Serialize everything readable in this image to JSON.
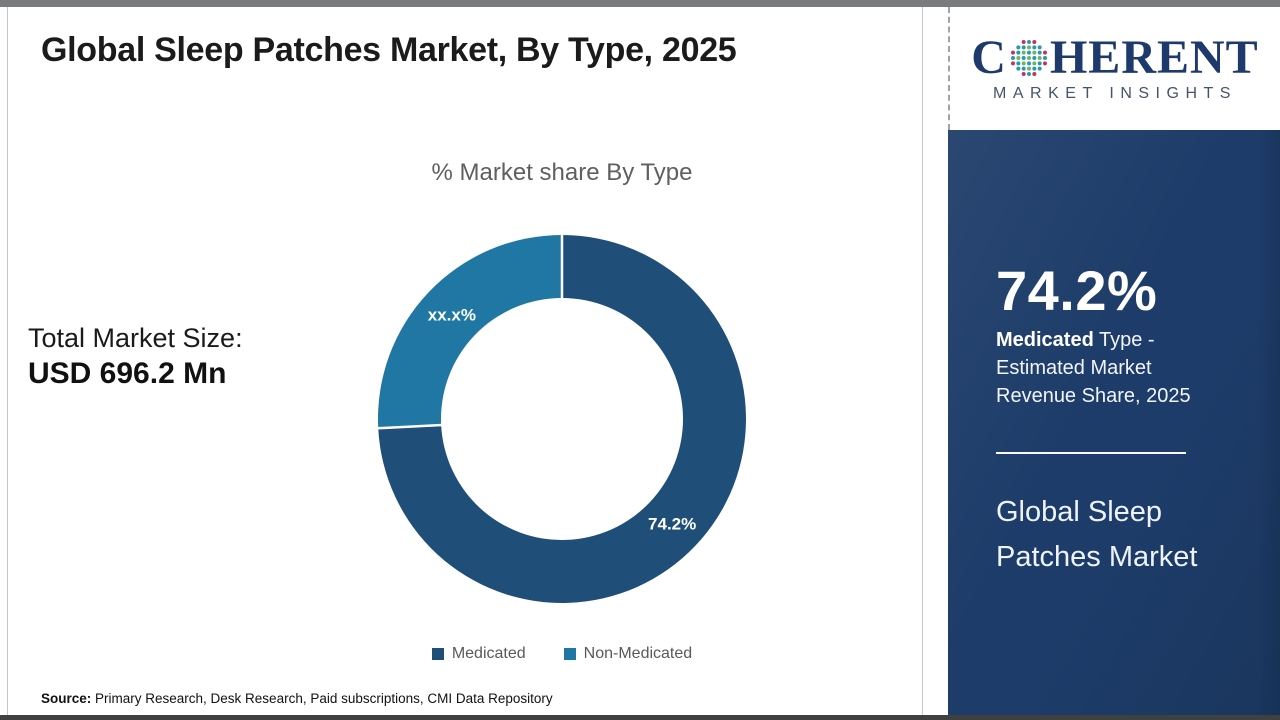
{
  "header": {
    "title": "Global Sleep Patches Market, By Type, 2025"
  },
  "logo": {
    "prefix": "C",
    "suffix": "HERENT",
    "subtitle": "MARKET INSIGHTS",
    "navy": "#1e3a6d",
    "subtitle_color": "#44546a",
    "globe_colors": {
      "outer_a": "#c2316e",
      "outer_b": "#2a9aa8",
      "inner_a": "#69b764",
      "inner_b": "#2a9aa8"
    }
  },
  "totals": {
    "label": "Total Market Size:",
    "value": "USD 696.2 Mn"
  },
  "chart_data": {
    "type": "pie",
    "donut": true,
    "title": "% Market share By Type",
    "categories": [
      "Medicated",
      "Non-Medicated"
    ],
    "values": [
      74.2,
      25.8
    ],
    "display_labels": [
      "74.2%",
      "xx.x%"
    ],
    "colors": [
      "#1f4e79",
      "#2177a3"
    ],
    "start_angle_deg": 0,
    "direction": "clockwise",
    "legend_position": "bottom",
    "note": "Non-Medicated share is masked as xx.x% on the chart"
  },
  "sidebar": {
    "stat_value": "74.2%",
    "stat_desc_bold": "Medicated",
    "stat_desc_rest": " Type - Estimated Market Revenue Share, 2025",
    "product_title": "Global Sleep Patches Market",
    "background": "#1d3c69"
  },
  "footer": {
    "source_label": "Source:",
    "source_text": " Primary Research, Desk Research, Paid subscriptions, CMI Data Repository"
  }
}
